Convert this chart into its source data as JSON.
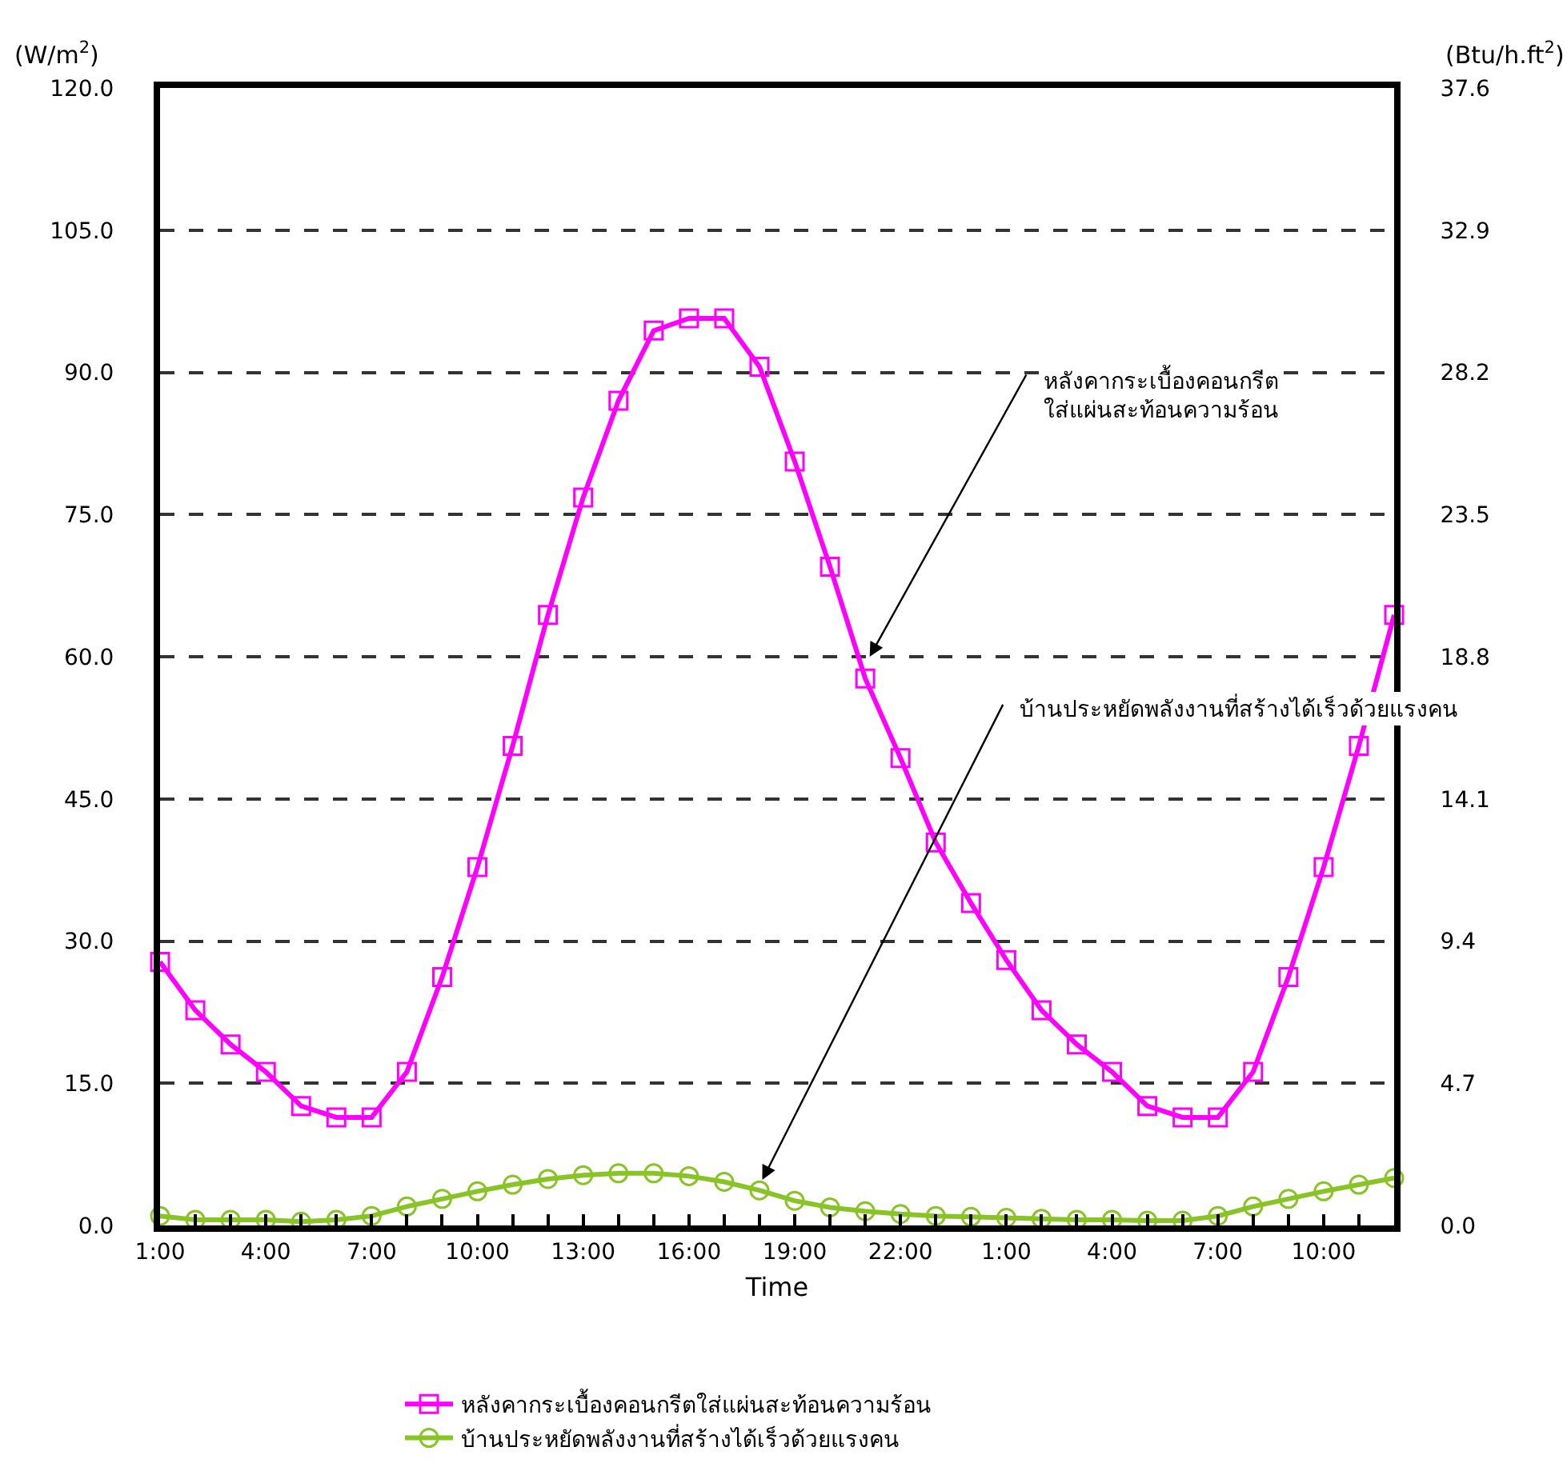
{
  "chart_data": {
    "type": "line",
    "xlabel": "Time",
    "ylabel": "(W/m$^{2}$)",
    "y2label": "(Btu/h.ft$^{2}$)",
    "categories": [
      "1:00",
      null,
      null,
      "4:00",
      null,
      null,
      "7:00",
      null,
      null,
      "10:00",
      null,
      null,
      "13:00",
      null,
      null,
      "16:00",
      null,
      null,
      "19:00",
      null,
      null,
      "22:00",
      null,
      null,
      "1:00",
      null,
      null,
      "4:00",
      null,
      null,
      "7:00",
      null,
      null,
      "10:00",
      null,
      null
    ],
    "series": [
      {
        "name": "หลังคากระเบื้องคอนกรีตใส่แผ่นสะท้อนความร้อน",
        "color": "#ff00ff",
        "marker": "square",
        "values": [
          27.8,
          22.7,
          19.1,
          16.2,
          12.6,
          11.4,
          11.4,
          16.2,
          26.2,
          37.8,
          50.6,
          64.4,
          76.8,
          87.0,
          94.4,
          95.7,
          95.7,
          90.6,
          80.6,
          69.5,
          57.7,
          49.3,
          40.4,
          34.0,
          28.0,
          22.7,
          19.1,
          16.2,
          12.6,
          11.4,
          11.4,
          16.2,
          26.2,
          37.8,
          50.6,
          64.4
        ]
      },
      {
        "name": "บ้านประหยัดพลังงานที่สร้างได้เร็วด้วยแรงคน",
        "color": "#88c425",
        "marker": "circle",
        "values": [
          1.0,
          0.6,
          0.6,
          0.6,
          0.4,
          0.6,
          1.0,
          2.0,
          2.8,
          3.6,
          4.3,
          4.9,
          5.3,
          5.5,
          5.5,
          5.2,
          4.6,
          3.7,
          2.6,
          1.9,
          1.5,
          1.2,
          1.0,
          0.9,
          0.8,
          0.7,
          0.6,
          0.6,
          0.5,
          0.5,
          1.0,
          2.0,
          2.8,
          3.6,
          4.3,
          5.0
        ]
      }
    ],
    "ylim": [
      0,
      120
    ],
    "yticks": [
      {
        "value": 0,
        "label": "0.0"
      },
      {
        "value": 15,
        "label": "15.0"
      },
      {
        "value": 30,
        "label": "30.0"
      },
      {
        "value": 45,
        "label": "45.0"
      },
      {
        "value": 60,
        "label": "60.0"
      },
      {
        "value": 75,
        "label": "75.0"
      },
      {
        "value": 90,
        "label": "90.0"
      },
      {
        "value": 105,
        "label": "105.0"
      },
      {
        "value": 120,
        "label": "120.0"
      }
    ],
    "y2lim": [
      0,
      37.6
    ],
    "y2ticks": [
      {
        "value": 0,
        "label": "0.0"
      },
      4.7,
      9.4,
      14.1,
      18.8,
      23.5,
      28.2,
      32.9,
      37.6
    ],
    "grid": "y",
    "line_style": "solid",
    "legend": "bottom",
    "annotations": [
      "หลังคากระเบื้องคอนกรีต\nใส่แผ่นสะท้อนความร้อน",
      "บ้านประหยัดพลังงานที่สร้างได้เร็วด้วยแรงคน"
    ]
  }
}
